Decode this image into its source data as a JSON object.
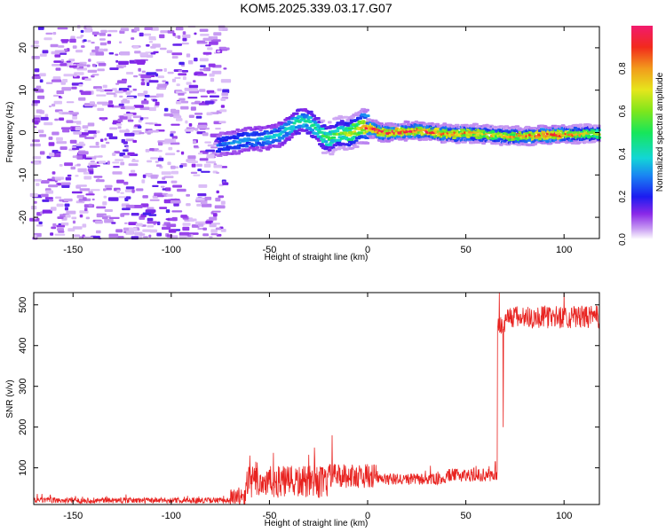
{
  "title": "KOM5.2025.339.03.17.G07",
  "chart_data": [
    {
      "type": "heatmap",
      "xlabel": "Height of straight line (km)",
      "ylabel": "Frequency (Hz)",
      "xlim": [
        -170,
        118
      ],
      "ylim": [
        -25,
        25
      ],
      "x_ticks": [
        -150,
        -100,
        -50,
        0,
        50,
        100
      ],
      "y_ticks": [
        -20,
        -10,
        0,
        10,
        20
      ],
      "noise_region_x": [
        -170,
        -72
      ],
      "ridge": {
        "x": [
          -76,
          -70,
          -65,
          -60,
          -55,
          -50,
          -45,
          -40,
          -36,
          -33,
          -30,
          -25,
          -22,
          -19,
          -16,
          -13,
          -10,
          -5,
          -2,
          2,
          8,
          15,
          25,
          35,
          45,
          55,
          65,
          70,
          80,
          90,
          100,
          110,
          118
        ],
        "freq": [
          -3,
          -2.5,
          -2,
          -1.5,
          -1.5,
          -1.2,
          -0.5,
          1,
          2.5,
          3,
          2.5,
          0.5,
          -1,
          -1.5,
          -0.5,
          0,
          -0.5,
          0.8,
          1.5,
          1,
          0,
          0.2,
          0.5,
          0,
          -0.3,
          -0.2,
          -0.5,
          -0.8,
          -0.8,
          -0.6,
          -0.4,
          -0.3,
          -0.2
        ],
        "amplitude": [
          0.25,
          0.3,
          0.3,
          0.32,
          0.32,
          0.35,
          0.35,
          0.4,
          0.45,
          0.4,
          0.45,
          0.45,
          0.5,
          0.5,
          0.55,
          0.55,
          0.6,
          0.7,
          0.85,
          0.9,
          0.92,
          0.92,
          0.88,
          0.85,
          0.8,
          0.78,
          0.72,
          0.7,
          0.8,
          0.9,
          0.85,
          0.7,
          0.6
        ]
      },
      "colorbar": {
        "label": "Normalized spectral amplitude",
        "range": [
          0,
          1
        ],
        "ticks": [
          "0.0",
          "0.2",
          "0.4",
          "0.6",
          "0.8"
        ]
      }
    },
    {
      "type": "line",
      "xlabel": "Height of straight line (km)",
      "ylabel": "SNR (v/v)",
      "xlim": [
        -170,
        118
      ],
      "ylim": [
        10,
        530
      ],
      "x_ticks": [
        -150,
        -100,
        -50,
        0,
        50,
        100
      ],
      "y_ticks": [
        100,
        200,
        300,
        400,
        500
      ],
      "color": "#e8221f",
      "segments": [
        {
          "x_start": -170,
          "x_end": -70,
          "base": 20,
          "noise": 7
        },
        {
          "x_start": -70,
          "x_end": -62,
          "base": 25,
          "noise": 25
        },
        {
          "x_start": -62,
          "x_end": -20,
          "base": 65,
          "noise": 40
        },
        {
          "x_start": -20,
          "x_end": 5,
          "base": 80,
          "noise": 30
        },
        {
          "x_start": 5,
          "x_end": 40,
          "base": 72,
          "noise": 14
        },
        {
          "x_start": 40,
          "x_end": 66,
          "base": 82,
          "noise": 16
        },
        {
          "x_start": 66,
          "x_end": 70,
          "base": 450,
          "noise": 25
        },
        {
          "x_start": 70,
          "x_end": 118,
          "base": 470,
          "noise": 28
        }
      ],
      "spikes": [
        {
          "x": -60,
          "y": 130
        },
        {
          "x": -57,
          "y": 115
        },
        {
          "x": -18,
          "y": 180
        },
        {
          "x": -27,
          "y": 150
        },
        {
          "x": 32,
          "y": 105
        },
        {
          "x": 65,
          "y": 115
        },
        {
          "x": 67,
          "y": 530
        },
        {
          "x": 69,
          "y": 200
        },
        {
          "x": 100,
          "y": 530
        }
      ]
    }
  ]
}
